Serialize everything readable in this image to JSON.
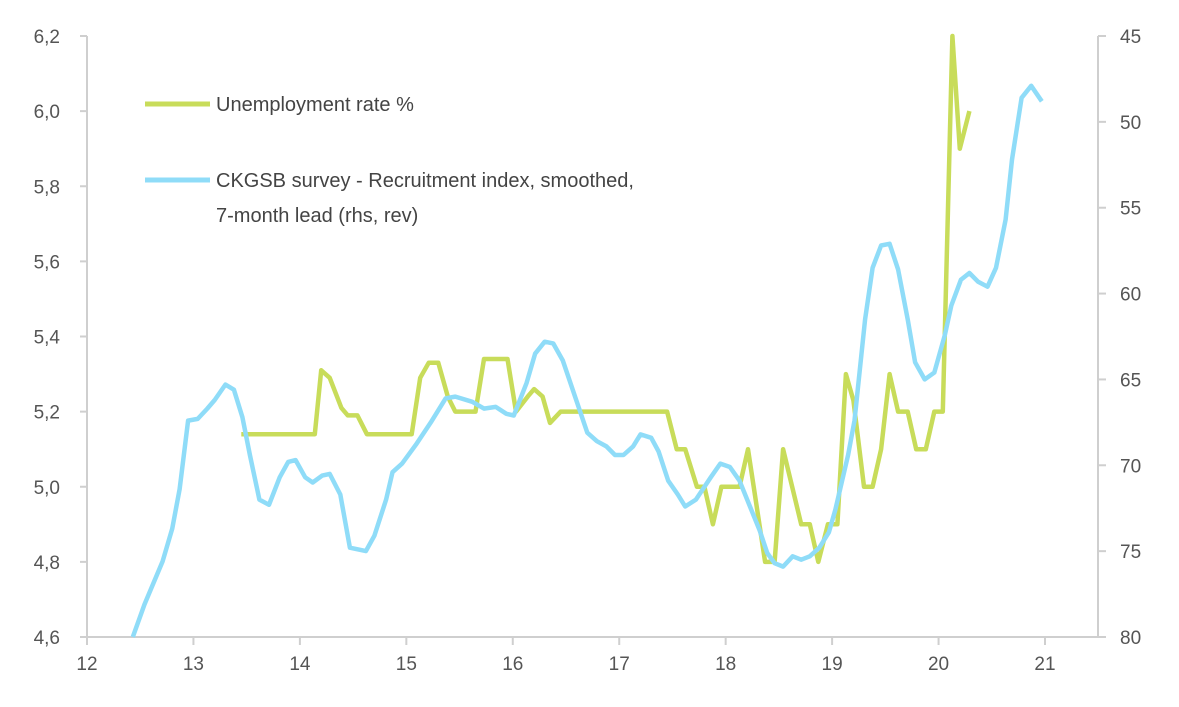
{
  "chart_data": {
    "type": "line",
    "title": "",
    "xlabel": "",
    "ylabel_left": "",
    "ylabel_right": "",
    "xlim": [
      12,
      21.5
    ],
    "ylim_left": [
      4.6,
      6.2
    ],
    "ylim_right": [
      45,
      80
    ],
    "right_axis_reversed": true,
    "grid": false,
    "legend_position": "top-left",
    "x_ticks": [
      "12",
      "13",
      "14",
      "15",
      "16",
      "17",
      "18",
      "19",
      "20",
      "21"
    ],
    "y_left_ticks": [
      "4,6",
      "4,8",
      "5,0",
      "5,2",
      "5,4",
      "5,6",
      "5,8",
      "6,0",
      "6,2"
    ],
    "y_right_ticks": [
      "45",
      "50",
      "55",
      "60",
      "65",
      "70",
      "75",
      "80"
    ],
    "series": [
      {
        "name": "Unemployment rate %",
        "axis": "left",
        "color": "#c8dc5a",
        "legend_lines": [
          "Unemployment rate %"
        ],
        "x": [
          13.45,
          14.14,
          14.2,
          14.28,
          14.39,
          14.45,
          14.54,
          14.63,
          15.05,
          15.13,
          15.21,
          15.3,
          15.39,
          15.46,
          15.65,
          15.73,
          15.95,
          16.03,
          16.14,
          16.2,
          16.28,
          16.35,
          16.45,
          17.45,
          17.54,
          17.62,
          17.73,
          17.8,
          17.88,
          17.96,
          18.13,
          18.21,
          18.37,
          18.46,
          18.54,
          18.71,
          18.79,
          18.87,
          18.96,
          19.05,
          19.13,
          19.2,
          19.3,
          19.38,
          19.46,
          19.54,
          19.62,
          19.71,
          19.79,
          19.88,
          19.96,
          20.04,
          20.13,
          20.2,
          20.29
        ],
        "y": [
          5.14,
          5.14,
          5.31,
          5.29,
          5.21,
          5.19,
          5.19,
          5.14,
          5.14,
          5.29,
          5.33,
          5.33,
          5.24,
          5.2,
          5.2,
          5.34,
          5.34,
          5.2,
          5.24,
          5.26,
          5.24,
          5.17,
          5.2,
          5.2,
          5.1,
          5.1,
          5.0,
          5.0,
          4.9,
          5.0,
          5.0,
          5.1,
          4.8,
          4.8,
          5.1,
          4.9,
          4.9,
          4.8,
          4.9,
          4.9,
          5.3,
          5.23,
          5.0,
          5.0,
          5.1,
          5.3,
          5.2,
          5.2,
          5.1,
          5.1,
          5.2,
          5.2,
          6.2,
          5.9,
          6.0
        ]
      },
      {
        "name": "CKGSB survey - Recruitment index, smoothed, 7-month lead (rhs, rev)",
        "axis": "right",
        "color": "#8fdcf8",
        "legend_lines": [
          "CKGSB survey - Recruitment index, smoothed,",
          "7-month lead (rhs, rev)"
        ],
        "x": [
          12.43,
          12.54,
          12.71,
          12.8,
          12.87,
          12.95,
          13.04,
          13.13,
          13.2,
          13.3,
          13.38,
          13.46,
          13.53,
          13.62,
          13.71,
          13.81,
          13.89,
          13.96,
          14.05,
          14.12,
          14.21,
          14.28,
          14.38,
          14.47,
          14.62,
          14.7,
          14.81,
          14.87,
          14.96,
          15.09,
          15.23,
          15.37,
          15.46,
          15.62,
          15.73,
          15.84,
          15.94,
          16.01,
          16.13,
          16.21,
          16.3,
          16.38,
          16.47,
          16.7,
          16.79,
          16.88,
          16.96,
          17.04,
          17.13,
          17.2,
          17.3,
          17.37,
          17.46,
          17.55,
          17.62,
          17.72,
          17.86,
          17.95,
          18.04,
          18.13,
          18.32,
          18.39,
          18.46,
          18.54,
          18.63,
          18.71,
          18.79,
          18.88,
          18.97,
          19.03,
          19.15,
          19.21,
          19.31,
          19.38,
          19.46,
          19.54,
          19.62,
          19.71,
          19.78,
          19.87,
          19.96,
          20.06,
          20.12,
          20.21,
          20.29,
          20.37,
          20.46,
          20.54,
          20.63,
          20.69,
          20.78,
          20.87,
          20.97
        ],
        "y": [
          80,
          78.1,
          75.6,
          73.7,
          71.4,
          67.4,
          67.3,
          66.7,
          66.2,
          65.3,
          65.6,
          67.2,
          69.4,
          72.0,
          72.3,
          70.7,
          69.8,
          69.7,
          70.7,
          71.0,
          70.6,
          70.5,
          71.7,
          74.8,
          75.0,
          74.1,
          72.0,
          70.4,
          69.9,
          68.8,
          67.5,
          66.1,
          66.0,
          66.3,
          66.7,
          66.6,
          67.0,
          67.1,
          65.2,
          63.5,
          62.8,
          62.9,
          63.9,
          68.1,
          68.6,
          68.9,
          69.4,
          69.4,
          68.9,
          68.2,
          68.4,
          69.2,
          70.9,
          71.7,
          72.4,
          72.0,
          70.7,
          69.9,
          70.1,
          70.9,
          73.8,
          75.1,
          75.7,
          75.9,
          75.3,
          75.5,
          75.3,
          74.8,
          73.9,
          72.6,
          69.4,
          67.4,
          61.5,
          58.5,
          57.2,
          57.1,
          58.6,
          61.5,
          64.0,
          65.0,
          64.6,
          62.4,
          60.7,
          59.2,
          58.8,
          59.3,
          59.6,
          58.5,
          55.7,
          52.2,
          48.6,
          47.9,
          48.8
        ]
      }
    ]
  }
}
